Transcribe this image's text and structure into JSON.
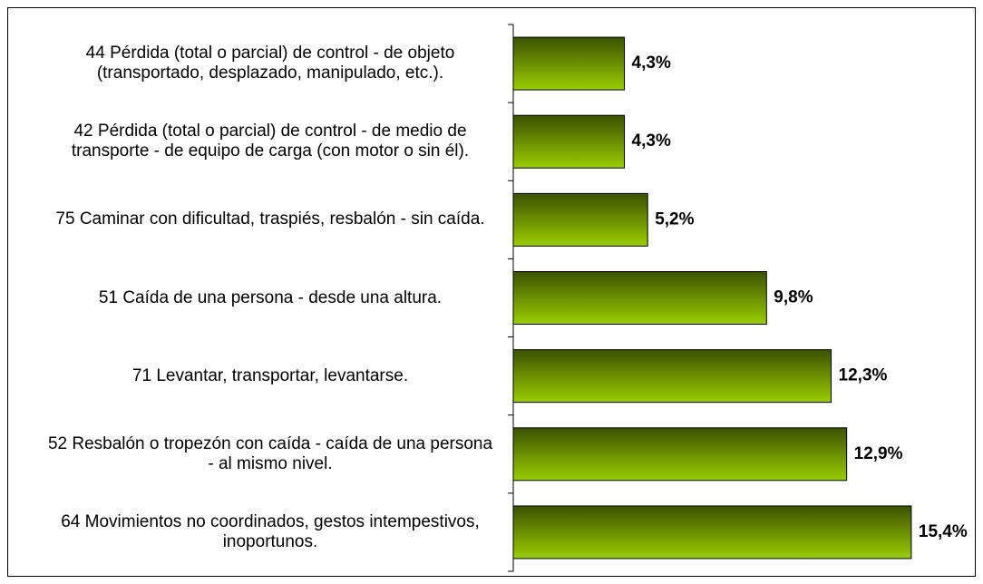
{
  "chart_data": {
    "type": "bar",
    "orientation": "horizontal",
    "categories": [
      "44 Pérdida (total o parcial) de control - de objeto (transportado, desplazado, manipulado, etc.).",
      "42 Pérdida (total o parcial) de control - de medio de transporte - de equipo de carga (con motor o sin él).",
      "75 Caminar con dificultad, traspiés, resbalón - sin caída.",
      "51 Caída de una persona - desde una altura.",
      "71 Levantar, transportar, levantarse.",
      "52 Resbalón o tropezón con caída - caída de una persona - al mismo nivel.",
      "64 Movimientos no coordinados, gestos intempestivos, inoportunos."
    ],
    "values": [
      4.3,
      4.3,
      5.2,
      9.8,
      12.3,
      12.9,
      15.4
    ],
    "value_labels": [
      "4,3%",
      "4,3%",
      "5,2%",
      "9,8%",
      "12,3%",
      "12,9%",
      "15,4%"
    ],
    "color": "#99cc00",
    "xlim": [
      0,
      16
    ]
  }
}
